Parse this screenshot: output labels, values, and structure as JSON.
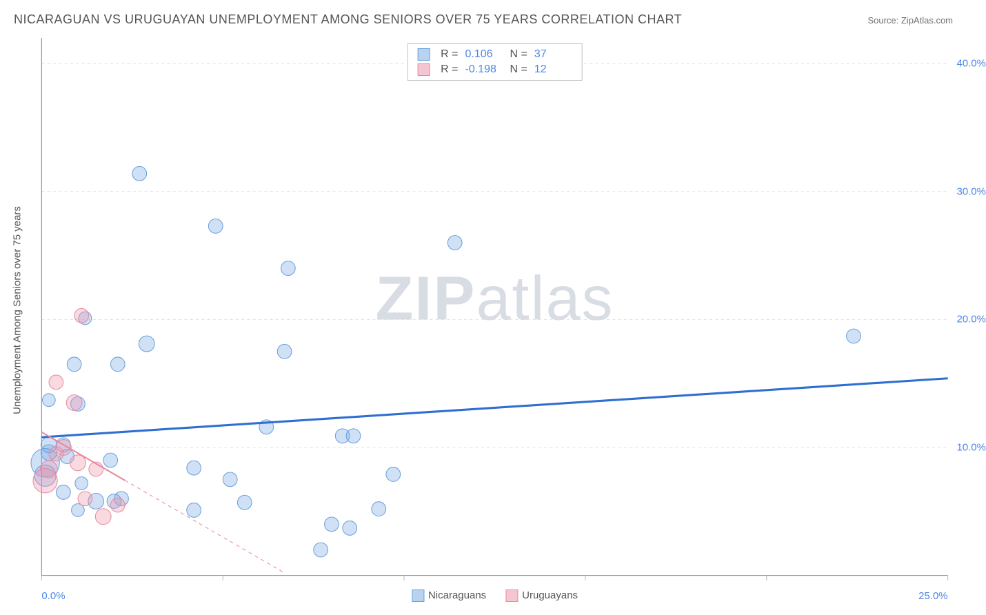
{
  "title": "NICARAGUAN VS URUGUAYAN UNEMPLOYMENT AMONG SENIORS OVER 75 YEARS CORRELATION CHART",
  "source": "Source: ZipAtlas.com",
  "ylabel": "Unemployment Among Seniors over 75 years",
  "watermark_a": "ZIP",
  "watermark_b": "atlas",
  "chart": {
    "type": "scatter",
    "background_color": "#ffffff",
    "grid_color": "#e0e0e0",
    "axis_color": "#888888",
    "tick_color": "#bbbbbb",
    "xlim": [
      0,
      25
    ],
    "ylim": [
      0,
      42
    ],
    "x_ticks": [
      0,
      5,
      10,
      15,
      20,
      25
    ],
    "x_tick_labels": [
      "0.0%",
      "",
      "",
      "",
      "",
      "25.0%"
    ],
    "y_ticks": [
      10,
      20,
      30,
      40
    ],
    "y_tick_labels": [
      "10.0%",
      "20.0%",
      "30.0%",
      "40.0%"
    ],
    "y_grid": [
      10,
      20,
      30,
      40
    ],
    "series": [
      {
        "id": "nicaraguans",
        "label": "Nicaraguans",
        "fill": "rgba(120,170,230,0.35)",
        "stroke": "#6aa0dd",
        "swatch_fill": "#b8d2f0",
        "swatch_stroke": "#6aa0dd",
        "r": 10,
        "points": [
          {
            "x": 2.7,
            "y": 31.4,
            "r": 10
          },
          {
            "x": 4.8,
            "y": 27.3,
            "r": 10
          },
          {
            "x": 11.4,
            "y": 26.0,
            "r": 10
          },
          {
            "x": 6.8,
            "y": 24.0,
            "r": 10
          },
          {
            "x": 1.2,
            "y": 20.1,
            "r": 9
          },
          {
            "x": 22.4,
            "y": 18.7,
            "r": 10
          },
          {
            "x": 2.9,
            "y": 18.1,
            "r": 11
          },
          {
            "x": 6.7,
            "y": 17.5,
            "r": 10
          },
          {
            "x": 0.9,
            "y": 16.5,
            "r": 10
          },
          {
            "x": 2.1,
            "y": 16.5,
            "r": 10
          },
          {
            "x": 0.2,
            "y": 13.7,
            "r": 9
          },
          {
            "x": 1.0,
            "y": 13.4,
            "r": 10
          },
          {
            "x": 6.2,
            "y": 11.6,
            "r": 10
          },
          {
            "x": 8.3,
            "y": 10.9,
            "r": 10
          },
          {
            "x": 8.6,
            "y": 10.9,
            "r": 10
          },
          {
            "x": 0.6,
            "y": 10.2,
            "r": 10
          },
          {
            "x": 0.2,
            "y": 10.2,
            "r": 11
          },
          {
            "x": 0.2,
            "y": 9.6,
            "r": 11
          },
          {
            "x": 0.1,
            "y": 8.8,
            "r": 20
          },
          {
            "x": 0.7,
            "y": 9.3,
            "r": 10
          },
          {
            "x": 1.9,
            "y": 9.0,
            "r": 10
          },
          {
            "x": 4.2,
            "y": 8.4,
            "r": 10
          },
          {
            "x": 9.7,
            "y": 7.9,
            "r": 10
          },
          {
            "x": 5.2,
            "y": 7.5,
            "r": 10
          },
          {
            "x": 0.1,
            "y": 7.8,
            "r": 15
          },
          {
            "x": 1.1,
            "y": 7.2,
            "r": 9
          },
          {
            "x": 2.2,
            "y": 6.0,
            "r": 10
          },
          {
            "x": 2.0,
            "y": 5.8,
            "r": 10
          },
          {
            "x": 1.5,
            "y": 5.8,
            "r": 11
          },
          {
            "x": 4.2,
            "y": 5.1,
            "r": 10
          },
          {
            "x": 5.6,
            "y": 5.7,
            "r": 10
          },
          {
            "x": 8.0,
            "y": 4.0,
            "r": 10
          },
          {
            "x": 9.3,
            "y": 5.2,
            "r": 10
          },
          {
            "x": 7.7,
            "y": 2.0,
            "r": 10
          },
          {
            "x": 8.5,
            "y": 3.7,
            "r": 10
          },
          {
            "x": 0.6,
            "y": 6.5,
            "r": 10
          },
          {
            "x": 1.0,
            "y": 5.1,
            "r": 9
          }
        ],
        "trend": {
          "x1": 0,
          "y1": 10.8,
          "x2": 25,
          "y2": 15.4,
          "color": "#2f6fd0",
          "width": 3
        },
        "corr": {
          "R": "0.106",
          "N": "37"
        }
      },
      {
        "id": "uruguayans",
        "label": "Uruguayans",
        "fill": "rgba(240,150,170,0.35)",
        "stroke": "#e88aa0",
        "swatch_fill": "#f5c5d1",
        "swatch_stroke": "#e88aa0",
        "r": 10,
        "points": [
          {
            "x": 1.1,
            "y": 20.3,
            "r": 10
          },
          {
            "x": 0.4,
            "y": 15.1,
            "r": 10
          },
          {
            "x": 0.9,
            "y": 13.5,
            "r": 11
          },
          {
            "x": 0.6,
            "y": 10.0,
            "r": 11
          },
          {
            "x": 0.2,
            "y": 8.3,
            "r": 12
          },
          {
            "x": 0.1,
            "y": 7.4,
            "r": 17
          },
          {
            "x": 1.0,
            "y": 8.8,
            "r": 11
          },
          {
            "x": 1.5,
            "y": 8.3,
            "r": 10
          },
          {
            "x": 1.2,
            "y": 6.0,
            "r": 10
          },
          {
            "x": 1.7,
            "y": 4.6,
            "r": 11
          },
          {
            "x": 2.1,
            "y": 5.5,
            "r": 10
          },
          {
            "x": 0.4,
            "y": 9.5,
            "r": 10
          }
        ],
        "trend": {
          "x1": 0,
          "y1": 11.2,
          "x2": 6.7,
          "y2": 0.2,
          "color": "#e88aa0",
          "width": 2,
          "solid_until_x": 2.3
        },
        "corr": {
          "R": "-0.198",
          "N": "12"
        }
      }
    ]
  }
}
